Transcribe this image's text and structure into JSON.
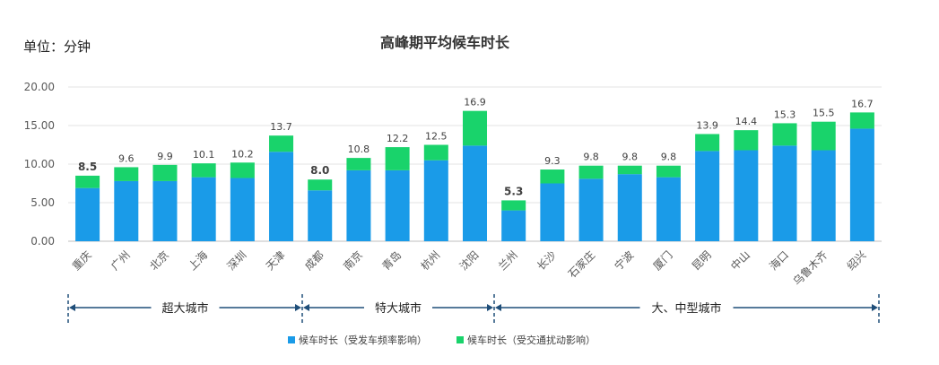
{
  "unit_label": "单位：分钟",
  "chart_data": {
    "type": "bar",
    "stacked": true,
    "title": "高峰期平均候车时长",
    "ylim": [
      0,
      20
    ],
    "yticks": [
      "0.00",
      "5.00",
      "10.00",
      "15.00",
      "20.00"
    ],
    "categories": [
      "重庆",
      "广州",
      "北京",
      "上海",
      "深圳",
      "天津",
      "成都",
      "南京",
      "青岛",
      "杭州",
      "沈阳",
      "兰州",
      "长沙",
      "石家庄",
      "宁波",
      "厦门",
      "昆明",
      "中山",
      "海口",
      "乌鲁木齐",
      "绍兴"
    ],
    "series": [
      {
        "name": "候车时长（受发车频率影响）",
        "color": "#1a9be8",
        "values": [
          6.9,
          7.8,
          7.8,
          8.3,
          8.2,
          11.6,
          6.6,
          9.2,
          9.2,
          10.5,
          12.4,
          4.0,
          7.5,
          8.1,
          8.7,
          8.3,
          11.7,
          11.8,
          12.4,
          11.8,
          14.6
        ]
      },
      {
        "name": "候车时长（受交通扰动影响）",
        "color": "#19d36b",
        "values": [
          1.6,
          1.8,
          2.1,
          1.8,
          2.0,
          2.1,
          1.4,
          1.6,
          3.0,
          2.0,
          4.5,
          1.3,
          1.8,
          1.7,
          1.1,
          1.5,
          2.2,
          2.6,
          2.9,
          3.7,
          2.1
        ]
      }
    ],
    "totals": [
      "8.5",
      "9.6",
      "9.9",
      "10.1",
      "10.2",
      "13.7",
      "8.0",
      "10.8",
      "12.2",
      "12.5",
      "16.9",
      "5.3",
      "9.3",
      "9.8",
      "9.8",
      "9.8",
      "13.9",
      "14.4",
      "15.3",
      "15.5",
      "16.7"
    ],
    "bold_total_indices": [
      0,
      6,
      11
    ],
    "groups": [
      {
        "label": "超大城市",
        "start": 0,
        "end": 5
      },
      {
        "label": "特大城市",
        "start": 6,
        "end": 10
      },
      {
        "label": "大、中型城市",
        "start": 11,
        "end": 20
      }
    ],
    "grid": true,
    "legend_position": "bottom"
  }
}
